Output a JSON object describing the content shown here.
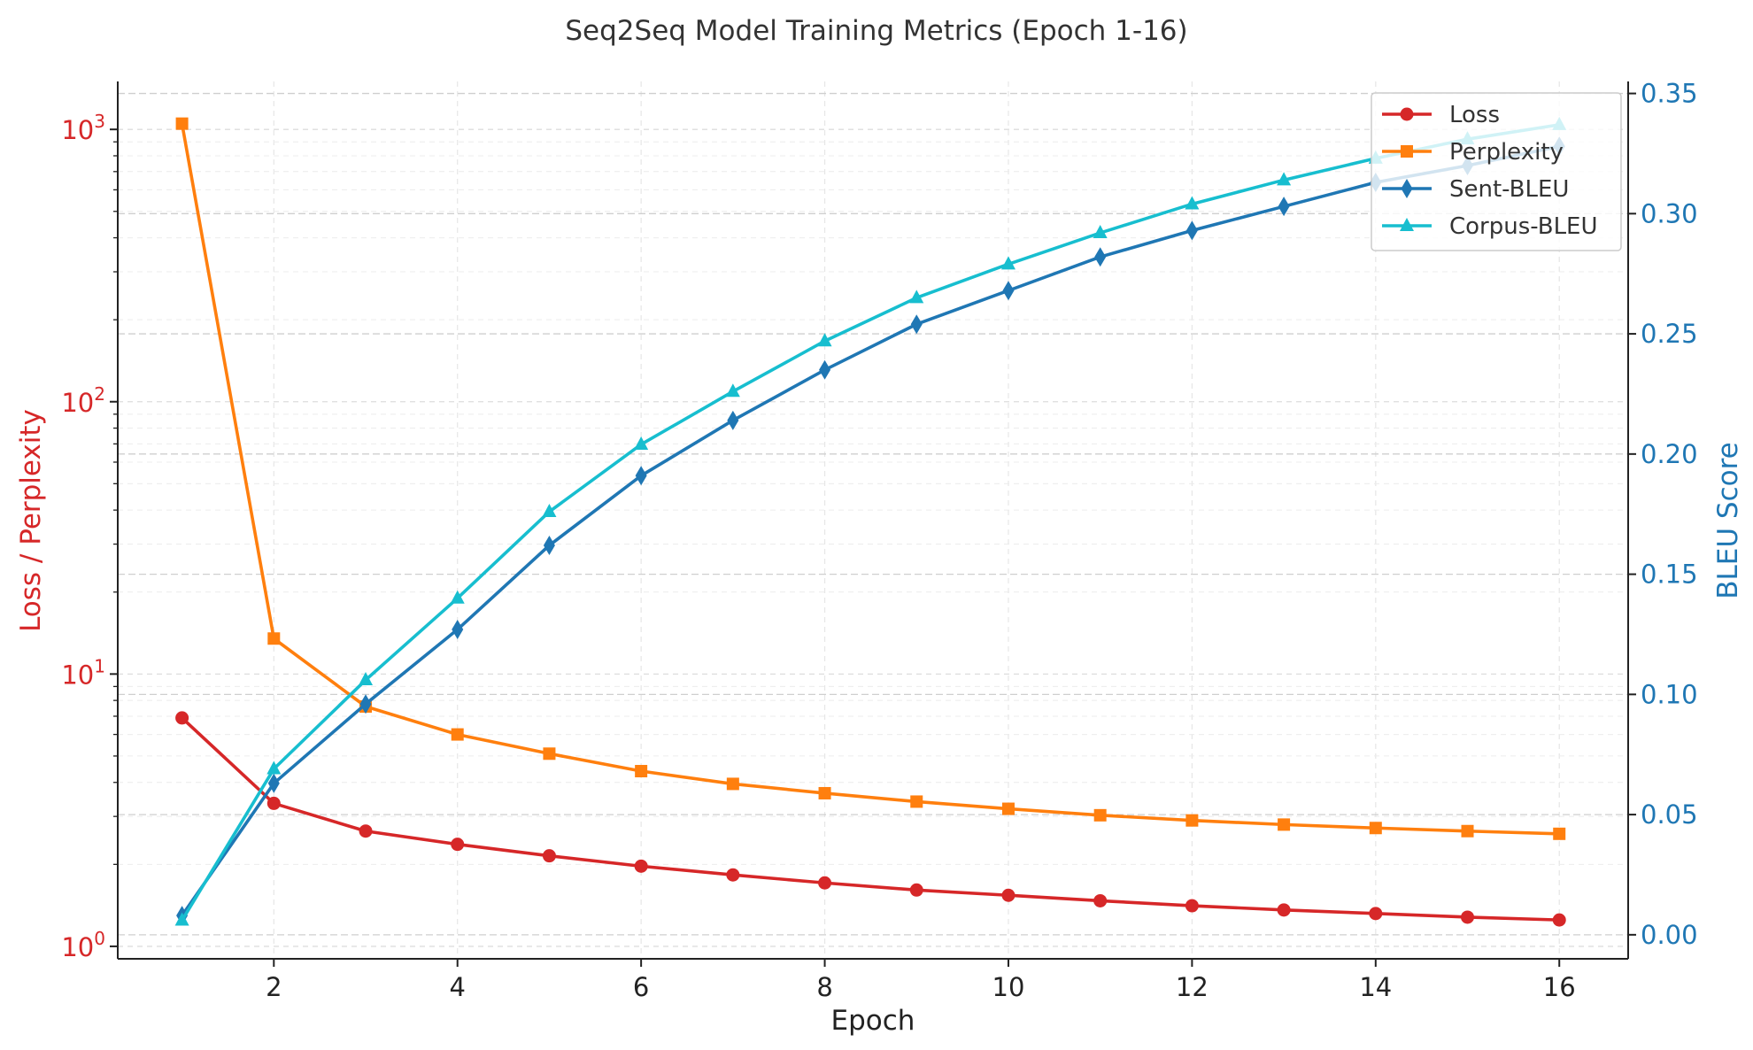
{
  "chart_data": {
    "type": "line",
    "title": "Seq2Seq Model Training Metrics (Epoch 1-16)",
    "xlabel": "Epoch",
    "ylabel_left": "Loss / Perplexity",
    "ylabel_right": "BLEU Score",
    "x": [
      1,
      2,
      3,
      4,
      5,
      6,
      7,
      8,
      9,
      10,
      11,
      12,
      13,
      14,
      15,
      16
    ],
    "x_ticks": [
      2,
      4,
      6,
      8,
      10,
      12,
      14,
      16
    ],
    "xlim": [
      0.3,
      16.75
    ],
    "left_axis": {
      "scale": "log",
      "ylim": [
        0.9,
        1500
      ],
      "ticks": [
        {
          "value": 1,
          "base": "10",
          "exp": "0"
        },
        {
          "value": 10,
          "base": "10",
          "exp": "1"
        },
        {
          "value": 100,
          "base": "10",
          "exp": "2"
        },
        {
          "value": 1000,
          "base": "10",
          "exp": "3"
        }
      ],
      "color": "#d62728"
    },
    "right_axis": {
      "scale": "linear",
      "ylim": [
        -0.01,
        0.355
      ],
      "ticks": [
        "0.00",
        "0.05",
        "0.10",
        "0.15",
        "0.20",
        "0.25",
        "0.30",
        "0.35"
      ],
      "color": "#1f77b4"
    },
    "series": [
      {
        "name": "Loss",
        "axis": "left",
        "color": "#d62728",
        "marker": "circle",
        "values": [
          6.9,
          3.35,
          2.65,
          2.37,
          2.15,
          1.97,
          1.83,
          1.71,
          1.61,
          1.54,
          1.47,
          1.41,
          1.36,
          1.32,
          1.28,
          1.25
        ]
      },
      {
        "name": "Perplexity",
        "axis": "left",
        "color": "#ff7f0e",
        "marker": "square",
        "values": [
          1050,
          13.5,
          7.6,
          6.0,
          5.1,
          4.4,
          3.95,
          3.65,
          3.4,
          3.2,
          3.03,
          2.9,
          2.8,
          2.72,
          2.65,
          2.59
        ]
      },
      {
        "name": "Sent-BLEU",
        "axis": "right",
        "color": "#1f77b4",
        "marker": "diamond",
        "values": [
          0.008,
          0.063,
          0.096,
          0.127,
          0.162,
          0.191,
          0.214,
          0.235,
          0.254,
          0.268,
          0.282,
          0.293,
          0.303,
          0.313,
          0.32,
          0.328
        ]
      },
      {
        "name": "Corpus-BLEU",
        "axis": "right",
        "color": "#17becf",
        "marker": "triangle",
        "values": [
          0.006,
          0.069,
          0.106,
          0.14,
          0.176,
          0.204,
          0.226,
          0.247,
          0.265,
          0.279,
          0.292,
          0.304,
          0.314,
          0.323,
          0.331,
          0.337
        ]
      }
    ],
    "grid": true,
    "legend": {
      "position": "top-right"
    }
  }
}
